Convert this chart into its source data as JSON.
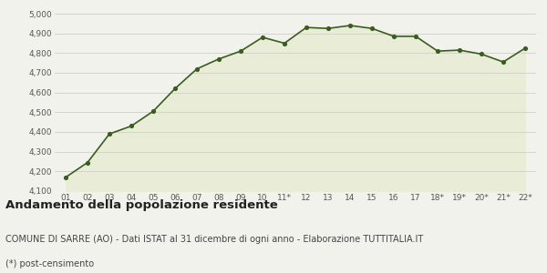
{
  "x_labels": [
    "01",
    "02",
    "03",
    "04",
    "05",
    "06",
    "07",
    "08",
    "09",
    "10",
    "11*",
    "12",
    "13",
    "14",
    "15",
    "16",
    "17",
    "18*",
    "19*",
    "20*",
    "21*",
    "22*"
  ],
  "y_values": [
    4170,
    4245,
    4390,
    4430,
    4505,
    4620,
    4720,
    4770,
    4810,
    4880,
    4850,
    4930,
    4925,
    4940,
    4925,
    4885,
    4885,
    4810,
    4815,
    4795,
    4755,
    4825
  ],
  "line_color": "#3a5c1e",
  "fill_color": "#e9edd8",
  "marker_color": "#3a5c1e",
  "bg_color": "#f2f2ed",
  "grid_color": "#d0d0c8",
  "ylim": [
    4100,
    5000
  ],
  "yticks": [
    4100,
    4200,
    4300,
    4400,
    4500,
    4600,
    4700,
    4800,
    4900,
    5000
  ],
  "title": "Andamento della popolazione residente",
  "subtitle": "COMUNE DI SARRE (AO) - Dati ISTAT al 31 dicembre di ogni anno - Elaborazione TUTTITALIA.IT",
  "footnote": "(*) post-censimento",
  "title_fontsize": 9.5,
  "subtitle_fontsize": 7,
  "footnote_fontsize": 7
}
